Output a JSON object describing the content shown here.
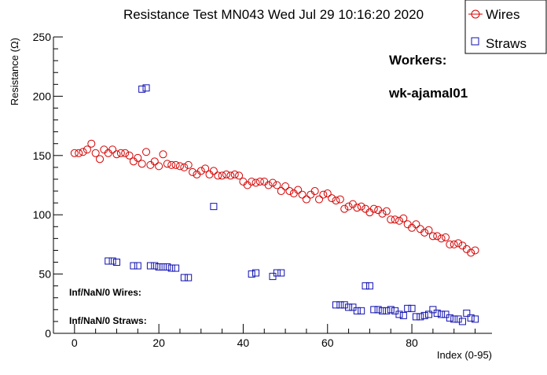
{
  "chart_data": {
    "type": "scatter",
    "title": "Resistance Test MN043 Wed Jul 29 10:16:20 2020",
    "xlabel": "Index (0-95)",
    "ylabel": "Resistance (Ω)",
    "xlim": [
      -5,
      99
    ],
    "ylim": [
      0,
      250
    ],
    "x_ticks": [
      "0",
      "20",
      "40",
      "60",
      "80"
    ],
    "y_ticks": [
      "0",
      "50",
      "100",
      "150",
      "200",
      "250"
    ],
    "legend": {
      "position": "top-right",
      "entries": [
        "Wires",
        "Straws"
      ]
    },
    "annotations": {
      "workers_label": "Workers:",
      "worker_name": "wk-ajamal01",
      "inf_wires": "Inf/NaN/0 Wires:",
      "inf_straws": "Inf/NaN/0 Straws:"
    },
    "colors": {
      "wires": "#d40000",
      "straws": "#1010b0"
    },
    "series": [
      {
        "name": "Wires",
        "marker": "circle",
        "x": [
          0,
          1,
          2,
          3,
          4,
          5,
          6,
          7,
          8,
          9,
          10,
          11,
          12,
          13,
          14,
          15,
          16,
          17,
          18,
          19,
          20,
          21,
          22,
          23,
          24,
          25,
          26,
          27,
          28,
          29,
          30,
          31,
          32,
          33,
          34,
          35,
          36,
          37,
          38,
          39,
          40,
          41,
          42,
          43,
          44,
          45,
          46,
          47,
          48,
          49,
          50,
          51,
          52,
          53,
          54,
          55,
          56,
          57,
          58,
          59,
          60,
          61,
          62,
          63,
          64,
          65,
          66,
          67,
          68,
          69,
          70,
          71,
          72,
          73,
          74,
          75,
          76,
          77,
          78,
          79,
          80,
          81,
          82,
          83,
          84,
          85,
          86,
          87,
          88,
          89,
          90,
          91,
          92,
          93,
          94,
          95
        ],
        "y": [
          152,
          152,
          153,
          155,
          160,
          152,
          147,
          155,
          152,
          155,
          151,
          152,
          152,
          150,
          145,
          148,
          143,
          153,
          142,
          145,
          141,
          151,
          143,
          142,
          142,
          141,
          140,
          142,
          136,
          134,
          137,
          139,
          134,
          137,
          133,
          133,
          134,
          133,
          134,
          133,
          128,
          125,
          128,
          127,
          128,
          128,
          125,
          127,
          125,
          120,
          124,
          120,
          118,
          121,
          117,
          113,
          117,
          120,
          113,
          117,
          118,
          114,
          112,
          113,
          105,
          107,
          109,
          106,
          107,
          105,
          102,
          105,
          104,
          101,
          103,
          96,
          96,
          95,
          97,
          92,
          89,
          92,
          88,
          85,
          87,
          82,
          82,
          80,
          81,
          75,
          75,
          76,
          74,
          71,
          68,
          70
        ]
      },
      {
        "name": "Straws",
        "marker": "square",
        "x": [
          8,
          9,
          10,
          14,
          15,
          16,
          17,
          18,
          19,
          20,
          21,
          22,
          23,
          24,
          26,
          27,
          33,
          42,
          43,
          47,
          48,
          49,
          62,
          63,
          64,
          65,
          66,
          67,
          68,
          69,
          70,
          71,
          72,
          73,
          74,
          75,
          76,
          77,
          78,
          79,
          80,
          81,
          82,
          83,
          84,
          85,
          86,
          87,
          88,
          89,
          90,
          91,
          92,
          93,
          94,
          95
        ],
        "y": [
          61,
          61,
          60,
          57,
          57,
          206,
          207,
          57,
          57,
          56,
          56,
          56,
          55,
          55,
          47,
          47,
          107,
          50,
          51,
          48,
          51,
          51,
          24,
          24,
          24,
          22,
          22,
          19,
          19,
          40,
          40,
          20,
          20,
          19,
          19,
          20,
          19,
          16,
          15,
          21,
          21,
          14,
          14,
          15,
          16,
          20,
          17,
          16,
          16,
          13,
          12,
          12,
          10,
          17,
          13,
          12
        ]
      }
    ]
  }
}
